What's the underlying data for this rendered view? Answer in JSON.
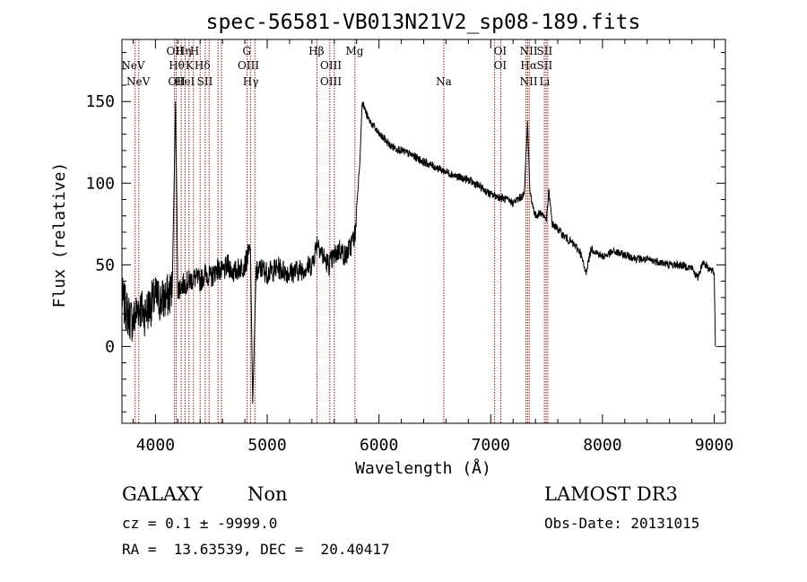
{
  "figure": {
    "title": "spec-56581-VB013N21V2_sp08-189.fits",
    "xlabel": "Wavelength (Å)",
    "ylabel": "Flux (relative)"
  },
  "info": {
    "object_class": "GALAXY",
    "subclass": "Non",
    "survey": "LAMOST DR3",
    "cz_line": "cz = 0.1 ± -9999.0",
    "obs_date_line": "Obs-Date: 20131015",
    "radec_line": "RA =  13.63539, DEC =  20.40417"
  },
  "colors": {
    "axis": "#000000",
    "spectrum": "#000000",
    "line_marker": "#8b1a1a"
  },
  "chart_data": {
    "type": "line",
    "title": "spec-56581-VB013N21V2_sp08-189.fits",
    "xlabel": "Wavelength (Å)",
    "ylabel": "Flux (relative)",
    "xlim": [
      3700,
      9100
    ],
    "ylim": [
      -47,
      188
    ],
    "x_ticks": [
      4000,
      5000,
      6000,
      7000,
      8000,
      9000
    ],
    "y_ticks": [
      0,
      50,
      100,
      150
    ],
    "series": [
      {
        "x": [
          3700,
          3750,
          3800,
          3850,
          3900,
          3950,
          4000,
          4050,
          4100,
          4150,
          4180,
          4200,
          4250,
          4300,
          4350,
          4400,
          4450,
          4500,
          4550,
          4600,
          4650,
          4700,
          4750,
          4800,
          4850,
          4870,
          4900,
          4950,
          5000,
          5100,
          5200,
          5300,
          5400,
          5450,
          5500,
          5550,
          5600,
          5650,
          5700,
          5750,
          5790,
          5800,
          5830,
          5850,
          5900,
          5950,
          6000,
          6050,
          6100,
          6200,
          6300,
          6400,
          6500,
          6600,
          6700,
          6800,
          6900,
          7000,
          7100,
          7200,
          7300,
          7330,
          7350,
          7380,
          7400,
          7450,
          7500,
          7520,
          7550,
          7600,
          7650,
          7700,
          7750,
          7800,
          7850,
          7900,
          8000,
          8100,
          8200,
          8300,
          8400,
          8500,
          8600,
          8700,
          8800,
          8850,
          8900,
          8950,
          9000,
          9010
        ],
        "y": [
          30,
          20,
          15,
          25,
          20,
          25,
          30,
          28,
          30,
          35,
          150,
          35,
          38,
          40,
          42,
          40,
          45,
          42,
          48,
          45,
          50,
          45,
          48,
          50,
          60,
          -35,
          45,
          48,
          45,
          48,
          45,
          47,
          50,
          65,
          55,
          50,
          55,
          60,
          55,
          62,
          70,
          85,
          115,
          150,
          140,
          135,
          130,
          127,
          123,
          120,
          117,
          113,
          110,
          107,
          104,
          102,
          98,
          93,
          91,
          88,
          93,
          138,
          95,
          85,
          80,
          82,
          78,
          95,
          75,
          72,
          68,
          65,
          62,
          58,
          45,
          60,
          55,
          58,
          56,
          54,
          53,
          52,
          50,
          50,
          48,
          42,
          52,
          48,
          45,
          0
        ]
      }
    ],
    "emission_lines": [
      {
        "label": "NeV",
        "wl": 3800,
        "row": 1
      },
      {
        "label": "NeV",
        "wl": 3846,
        "row": 2
      },
      {
        "label": "OII",
        "wl": 4175,
        "row": 0
      },
      {
        "label": "Hθ",
        "wl": 4190,
        "row": 1
      },
      {
        "label": "OII",
        "wl": 4190,
        "row": 2
      },
      {
        "label": "Hη",
        "wl": 4251,
        "row": 0
      },
      {
        "label": "H",
        "wl": 4350,
        "row": 0
      },
      {
        "label": "HeI",
        "wl": 4262,
        "row": 2
      },
      {
        "label": "K",
        "wl": 4305,
        "row": 1
      },
      {
        "label": "Hδ",
        "wl": 4420,
        "row": 1
      },
      {
        "label": "SII",
        "wl": 4442,
        "row": 2
      },
      {
        "label": "G",
        "wl": 4817,
        "row": 0
      },
      {
        "label": "OIII",
        "wl": 4832,
        "row": 1
      },
      {
        "label": "Hγ",
        "wl": 4852,
        "row": 2
      },
      {
        "label": "Hβ",
        "wl": 5440,
        "row": 0
      },
      {
        "label": "OIII",
        "wl": 5570,
        "row": 1
      },
      {
        "label": "OIII",
        "wl": 5570,
        "row": 2
      },
      {
        "label": "Mg",
        "wl": 5782,
        "row": 0
      },
      {
        "label": "Na",
        "wl": 6580,
        "row": 2
      },
      {
        "label": "OI",
        "wl": 7085,
        "row": 0
      },
      {
        "label": "OI",
        "wl": 7085,
        "row": 1
      },
      {
        "label": "NII",
        "wl": 7340,
        "row": 0
      },
      {
        "label": "Hα",
        "wl": 7340,
        "row": 1
      },
      {
        "label": "NII",
        "wl": 7340,
        "row": 2
      },
      {
        "label": "SII",
        "wl": 7482,
        "row": 0
      },
      {
        "label": "SII",
        "wl": 7482,
        "row": 1
      },
      {
        "label": "Li",
        "wl": 7482,
        "row": 2
      }
    ],
    "marker_wavelengths": [
      3818,
      3851,
      4170,
      4185,
      4230,
      4265,
      4300,
      4340,
      4400,
      4445,
      4480,
      4560,
      4590,
      4820,
      4850,
      4890,
      5445,
      5560,
      5600,
      5785,
      6580,
      7035,
      7090,
      7315,
      7330,
      7345,
      7480,
      7495,
      7510
    ]
  }
}
